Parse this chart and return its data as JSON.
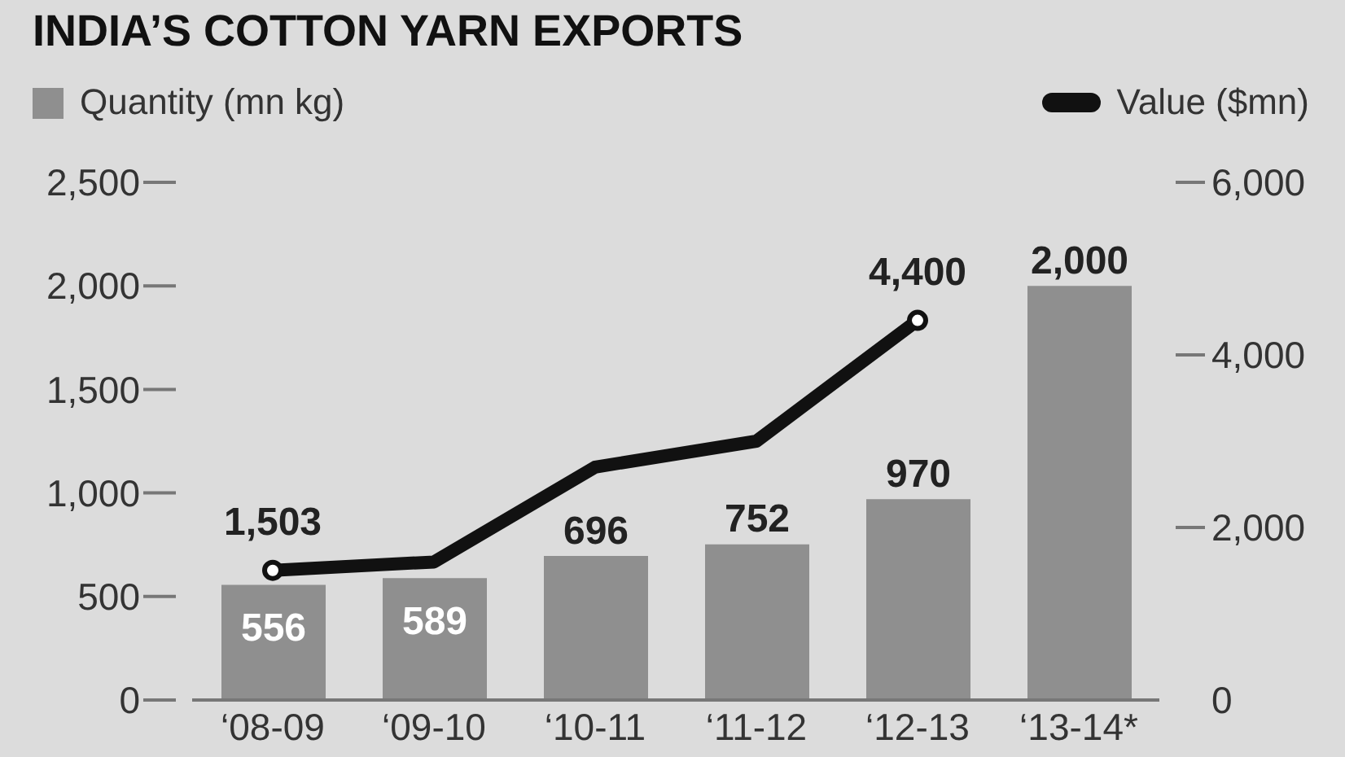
{
  "chart_data": {
    "type": "bar",
    "title": "INDIA’S COTTON YARN EXPORTS",
    "categories": [
      "‘08-09",
      "‘09-10",
      "‘10-11",
      "‘11-12",
      "‘12-13",
      "‘13-14*"
    ],
    "series": [
      {
        "name": "Quantity (mn kg)",
        "color": "#8f8f8f",
        "values": [
          556,
          589,
          696,
          752,
          970,
          2000
        ],
        "value_labels": [
          "556",
          "589",
          "696",
          "752",
          "970",
          "2,000"
        ]
      },
      {
        "name": "Value ($mn)",
        "type": "line",
        "axis": "y2",
        "color": "#111111",
        "values": [
          1503,
          1600,
          2700,
          3000,
          4400,
          null
        ],
        "value_labels": [
          "1,503",
          null,
          null,
          null,
          "4,400",
          null
        ]
      }
    ],
    "ylim": [
      0,
      2500
    ],
    "yticks": [
      0,
      500,
      {
        "value": 1000,
        "label": "1,000"
      },
      {
        "value": 1500,
        "label": "1,500"
      },
      {
        "value": 2000,
        "label": "2,000"
      },
      {
        "value": 2500,
        "label": "2,500"
      }
    ],
    "y2lim": [
      0,
      6000
    ],
    "y2ticks": [
      0,
      {
        "value": 2000,
        "label": "2,000"
      },
      {
        "value": 4000,
        "label": "4,000"
      },
      {
        "value": 6000,
        "label": "6,000"
      }
    ],
    "legend": "top",
    "grid": false
  }
}
